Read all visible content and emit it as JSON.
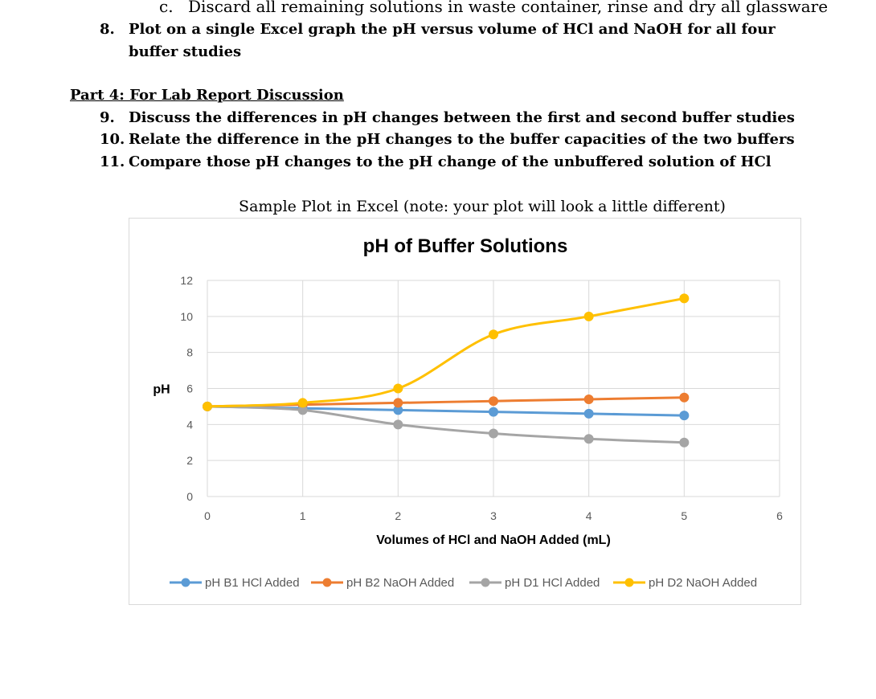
{
  "document": {
    "item_c": {
      "marker": "c.",
      "text": "Discard all remaining solutions in waste container, rinse and dry all glassware"
    },
    "item_8": {
      "marker": "8.",
      "text_line1": "Plot on a single Excel graph the pH versus volume of HCl and NaOH for all four",
      "text_line2": "buffer studies"
    },
    "part4_heading": "Part 4: For Lab Report Discussion",
    "questions": [
      {
        "marker": "9.",
        "text": "Discuss the differences in pH changes between the first and second buffer studies"
      },
      {
        "marker": "10.",
        "text": "Relate the difference in the pH changes to the buffer capacities of the two buffers"
      },
      {
        "marker": "11.",
        "text": "Compare those pH changes to the pH change of the unbuffered solution of HCl"
      }
    ],
    "caption": "Sample Plot in Excel (note: your plot will look a little different)"
  },
  "chart_data": {
    "type": "line",
    "title": "pH of Buffer Solutions",
    "xlabel": "Volumes of HCl and NaOH Added (mL)",
    "ylabel": "pH",
    "x": [
      0,
      1,
      2,
      3,
      4,
      5
    ],
    "xlim": [
      0,
      6
    ],
    "ylim": [
      0,
      12
    ],
    "xticks": [
      "0",
      "1",
      "2",
      "3",
      "4",
      "5",
      "6"
    ],
    "yticks": [
      "0",
      "2",
      "4",
      "6",
      "8",
      "10",
      "12"
    ],
    "grid": true,
    "legend_position": "bottom",
    "series": [
      {
        "name": "pH B1 HCl Added",
        "color": "#5B9BD5",
        "values": [
          5,
          4.9,
          4.8,
          4.7,
          4.6,
          4.5
        ]
      },
      {
        "name": "pH B2 NaOH Added",
        "color": "#ED7D31",
        "values": [
          5,
          5.1,
          5.2,
          5.3,
          5.4,
          5.5
        ]
      },
      {
        "name": "pH D1 HCl Added",
        "color": "#A5A5A5",
        "values": [
          5,
          4.8,
          4,
          3.5,
          3.2,
          3
        ]
      },
      {
        "name": "pH D2 NaOH Added",
        "color": "#FFC000",
        "values": [
          5,
          5.2,
          6,
          9,
          10,
          11
        ]
      }
    ]
  }
}
